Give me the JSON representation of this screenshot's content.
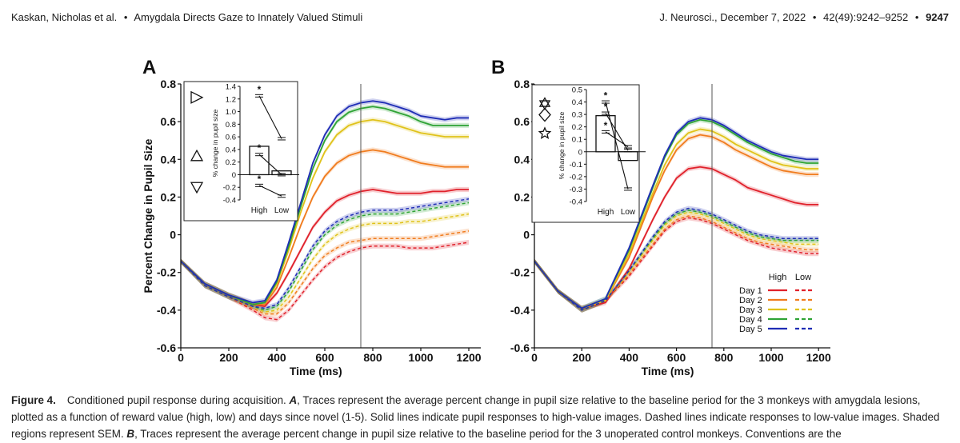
{
  "header": {
    "authors": "Kaskan, Nicholas et al.",
    "bullet": "•",
    "short_title": "Amygdala Directs Gaze to Innately Valued Stimuli",
    "journal": "J. Neurosci., December 7, 2022",
    "sep": "•",
    "volume": "42(49):9242–9252",
    "page": "9247"
  },
  "colors": {
    "day1": "#e0212b",
    "day2": "#f07c1e",
    "day3": "#e0c21a",
    "day4": "#2fa336",
    "day5": "#1f2db5"
  },
  "chart_data": [
    {
      "panel": "A",
      "type": "line",
      "ylabel": "Percent Change in Pupil Size",
      "xlabel": "Time (ms)",
      "xlim": [
        0,
        1250
      ],
      "ylim": [
        -0.6,
        0.8
      ],
      "xticks": [
        "0",
        "200",
        "400",
        "600",
        "800",
        "1000",
        "1200"
      ],
      "yticks": [
        "-0.6",
        "-0.4",
        "-0.2",
        "0",
        "0.2",
        "0.4",
        "0.6",
        "0.8"
      ],
      "vline_x": 750,
      "x": [
        0,
        100,
        200,
        300,
        350,
        400,
        450,
        500,
        550,
        600,
        650,
        700,
        750,
        800,
        850,
        900,
        950,
        1000,
        1050,
        1100,
        1150,
        1200
      ],
      "series": [
        {
          "name": "Day 1 High",
          "color_key": "day1",
          "dash": false,
          "values": [
            -0.14,
            -0.26,
            -0.32,
            -0.37,
            -0.38,
            -0.31,
            -0.2,
            -0.08,
            0.04,
            0.12,
            0.18,
            0.21,
            0.23,
            0.24,
            0.23,
            0.22,
            0.22,
            0.22,
            0.23,
            0.23,
            0.24,
            0.24
          ]
        },
        {
          "name": "Day 2 High",
          "color_key": "day2",
          "dash": false,
          "values": [
            -0.14,
            -0.26,
            -0.32,
            -0.37,
            -0.37,
            -0.28,
            -0.12,
            0.05,
            0.2,
            0.31,
            0.38,
            0.42,
            0.44,
            0.45,
            0.44,
            0.42,
            0.4,
            0.38,
            0.37,
            0.36,
            0.36,
            0.36
          ]
        },
        {
          "name": "Day 3 High",
          "color_key": "day3",
          "dash": false,
          "values": [
            -0.14,
            -0.26,
            -0.32,
            -0.37,
            -0.36,
            -0.26,
            -0.08,
            0.12,
            0.3,
            0.44,
            0.53,
            0.58,
            0.6,
            0.61,
            0.6,
            0.58,
            0.56,
            0.54,
            0.53,
            0.52,
            0.52,
            0.52
          ]
        },
        {
          "name": "Day 4 High",
          "color_key": "day4",
          "dash": false,
          "values": [
            -0.14,
            -0.26,
            -0.32,
            -0.37,
            -0.36,
            -0.25,
            -0.06,
            0.15,
            0.35,
            0.5,
            0.6,
            0.65,
            0.67,
            0.68,
            0.67,
            0.65,
            0.63,
            0.6,
            0.58,
            0.58,
            0.58,
            0.58
          ]
        },
        {
          "name": "Day 5 High",
          "color_key": "day5",
          "dash": false,
          "values": [
            -0.14,
            -0.26,
            -0.32,
            -0.36,
            -0.35,
            -0.24,
            -0.04,
            0.17,
            0.38,
            0.53,
            0.63,
            0.68,
            0.7,
            0.71,
            0.7,
            0.68,
            0.66,
            0.63,
            0.62,
            0.61,
            0.62,
            0.62
          ]
        },
        {
          "name": "Day 1 Low",
          "color_key": "day1",
          "dash": true,
          "values": [
            -0.14,
            -0.27,
            -0.33,
            -0.4,
            -0.44,
            -0.45,
            -0.4,
            -0.32,
            -0.24,
            -0.17,
            -0.12,
            -0.09,
            -0.07,
            -0.06,
            -0.06,
            -0.06,
            -0.07,
            -0.07,
            -0.07,
            -0.06,
            -0.05,
            -0.04
          ]
        },
        {
          "name": "Day 2 Low",
          "color_key": "day2",
          "dash": true,
          "values": [
            -0.14,
            -0.27,
            -0.33,
            -0.39,
            -0.42,
            -0.42,
            -0.36,
            -0.27,
            -0.18,
            -0.11,
            -0.07,
            -0.04,
            -0.03,
            -0.02,
            -0.02,
            -0.02,
            -0.02,
            -0.02,
            -0.01,
            0.0,
            0.01,
            0.02
          ]
        },
        {
          "name": "Day 3 Low",
          "color_key": "day3",
          "dash": true,
          "values": [
            -0.14,
            -0.27,
            -0.33,
            -0.38,
            -0.41,
            -0.4,
            -0.33,
            -0.23,
            -0.13,
            -0.05,
            0.0,
            0.03,
            0.05,
            0.06,
            0.06,
            0.06,
            0.07,
            0.07,
            0.08,
            0.09,
            0.1,
            0.11
          ]
        },
        {
          "name": "Day 4 Low",
          "color_key": "day4",
          "dash": true,
          "values": [
            -0.14,
            -0.27,
            -0.33,
            -0.38,
            -0.4,
            -0.38,
            -0.3,
            -0.19,
            -0.08,
            0.0,
            0.05,
            0.08,
            0.1,
            0.11,
            0.11,
            0.11,
            0.12,
            0.13,
            0.14,
            0.15,
            0.16,
            0.17
          ]
        },
        {
          "name": "Day 5 Low",
          "color_key": "day5",
          "dash": true,
          "values": [
            -0.14,
            -0.27,
            -0.33,
            -0.38,
            -0.39,
            -0.37,
            -0.28,
            -0.17,
            -0.06,
            0.02,
            0.07,
            0.1,
            0.12,
            0.13,
            0.13,
            0.13,
            0.14,
            0.15,
            0.16,
            0.17,
            0.18,
            0.19
          ]
        }
      ],
      "inset": {
        "type": "bar",
        "ylabel": "% change in pupil size",
        "categories": [
          "High",
          "Low"
        ],
        "ylim": [
          -0.4,
          1.4
        ],
        "yticks": [
          "-0.4",
          "-0.2",
          "0",
          "0.2",
          "0.4",
          "0.6",
          "0.8",
          "1.0",
          "1.2",
          "1.4"
        ],
        "values": [
          0.45,
          0.06
        ],
        "shapes": [
          {
            "name": "triangle-right",
            "high": 1.25,
            "low": 0.57
          },
          {
            "name": "triangle-up",
            "high": 0.32,
            "low": 0.0
          },
          {
            "name": "triangle-down",
            "high": -0.17,
            "low": -0.34
          }
        ],
        "sig_marker": "*"
      }
    },
    {
      "panel": "B",
      "type": "line",
      "ylabel": "",
      "xlabel": "Time (ms)",
      "xlim": [
        0,
        1250
      ],
      "ylim": [
        -0.6,
        0.8
      ],
      "xticks": [
        "0",
        "200",
        "400",
        "600",
        "800",
        "1000",
        "1200"
      ],
      "yticks": [
        "-0.6",
        "-0.4",
        "-0.2",
        "0",
        "0.2",
        "0.4",
        "0.6",
        "0.8"
      ],
      "vline_x": 750,
      "x": [
        0,
        100,
        200,
        300,
        400,
        500,
        550,
        600,
        650,
        700,
        750,
        800,
        850,
        900,
        950,
        1000,
        1050,
        1100,
        1150,
        1200
      ],
      "series": [
        {
          "name": "Day 1 High",
          "color_key": "day1",
          "dash": false,
          "values": [
            -0.14,
            -0.3,
            -0.39,
            -0.36,
            -0.18,
            0.08,
            0.2,
            0.3,
            0.35,
            0.36,
            0.35,
            0.32,
            0.29,
            0.25,
            0.23,
            0.21,
            0.19,
            0.17,
            0.16,
            0.16
          ]
        },
        {
          "name": "Day 2 High",
          "color_key": "day2",
          "dash": false,
          "values": [
            -0.14,
            -0.3,
            -0.39,
            -0.35,
            -0.12,
            0.2,
            0.34,
            0.45,
            0.51,
            0.53,
            0.52,
            0.49,
            0.45,
            0.42,
            0.39,
            0.36,
            0.34,
            0.33,
            0.32,
            0.32
          ]
        },
        {
          "name": "Day 3 High",
          "color_key": "day3",
          "dash": false,
          "values": [
            -0.14,
            -0.3,
            -0.39,
            -0.35,
            -0.1,
            0.22,
            0.37,
            0.48,
            0.54,
            0.56,
            0.55,
            0.52,
            0.48,
            0.45,
            0.42,
            0.39,
            0.37,
            0.36,
            0.35,
            0.35
          ]
        },
        {
          "name": "Day 4 High",
          "color_key": "day4",
          "dash": false,
          "values": [
            -0.14,
            -0.3,
            -0.39,
            -0.34,
            -0.08,
            0.25,
            0.41,
            0.53,
            0.59,
            0.61,
            0.6,
            0.57,
            0.53,
            0.49,
            0.46,
            0.43,
            0.41,
            0.39,
            0.38,
            0.38
          ]
        },
        {
          "name": "Day 5 High",
          "color_key": "day5",
          "dash": false,
          "values": [
            -0.14,
            -0.3,
            -0.39,
            -0.34,
            -0.07,
            0.26,
            0.42,
            0.54,
            0.6,
            0.62,
            0.61,
            0.58,
            0.54,
            0.5,
            0.47,
            0.44,
            0.42,
            0.41,
            0.4,
            0.4
          ]
        },
        {
          "name": "Day 1 Low",
          "color_key": "day1",
          "dash": true,
          "values": [
            -0.14,
            -0.3,
            -0.4,
            -0.35,
            -0.22,
            -0.06,
            0.02,
            0.07,
            0.09,
            0.08,
            0.06,
            0.03,
            0.0,
            -0.03,
            -0.05,
            -0.07,
            -0.08,
            -0.09,
            -0.1,
            -0.1
          ]
        },
        {
          "name": "Day 2 Low",
          "color_key": "day2",
          "dash": true,
          "values": [
            -0.14,
            -0.3,
            -0.4,
            -0.35,
            -0.21,
            -0.05,
            0.03,
            0.08,
            0.1,
            0.09,
            0.07,
            0.04,
            0.01,
            -0.02,
            -0.04,
            -0.05,
            -0.06,
            -0.07,
            -0.08,
            -0.08
          ]
        },
        {
          "name": "Day 3 Low",
          "color_key": "day3",
          "dash": true,
          "values": [
            -0.14,
            -0.3,
            -0.4,
            -0.35,
            -0.2,
            -0.03,
            0.05,
            0.1,
            0.12,
            0.11,
            0.09,
            0.06,
            0.03,
            0.0,
            -0.02,
            -0.03,
            -0.04,
            -0.05,
            -0.05,
            -0.05
          ]
        },
        {
          "name": "Day 4 Low",
          "color_key": "day4",
          "dash": true,
          "values": [
            -0.14,
            -0.3,
            -0.4,
            -0.35,
            -0.19,
            -0.02,
            0.06,
            0.11,
            0.13,
            0.12,
            0.1,
            0.07,
            0.04,
            0.01,
            -0.01,
            -0.02,
            -0.03,
            -0.03,
            -0.03,
            -0.03
          ]
        },
        {
          "name": "Day 5 Low",
          "color_key": "day5",
          "dash": true,
          "values": [
            -0.14,
            -0.3,
            -0.4,
            -0.35,
            -0.19,
            -0.01,
            0.07,
            0.12,
            0.14,
            0.13,
            0.11,
            0.08,
            0.05,
            0.02,
            0.0,
            -0.01,
            -0.02,
            -0.02,
            -0.02,
            -0.02
          ]
        }
      ],
      "inset": {
        "type": "bar",
        "ylabel": "% change in pupil size",
        "categories": [
          "High",
          "Low"
        ],
        "ylim": [
          -0.4,
          0.5
        ],
        "yticks": [
          "-0.4",
          "-0.3",
          "-0.2",
          "-0.1",
          "0",
          "0.1",
          "0.2",
          "0.3",
          "0.4",
          "0.5"
        ],
        "values": [
          0.29,
          -0.07
        ],
        "shapes": [
          {
            "name": "star-of-david",
            "high": 0.4,
            "low": -0.3
          },
          {
            "name": "diamond",
            "high": 0.31,
            "low": 0.01
          },
          {
            "name": "star",
            "high": 0.16,
            "low": 0.04
          }
        ],
        "sig_marker": "*"
      },
      "legend": {
        "position": "bottom-right",
        "headers": [
          "High",
          "Low"
        ],
        "entries": [
          "Day 1",
          "Day 2",
          "Day 3",
          "Day 4",
          "Day 5"
        ]
      }
    }
  ],
  "caption": {
    "label": "Figure 4.",
    "p1": "Conditioned pupil response during acquisition. ",
    "a": "A",
    "p2": ", Traces represent the average percent change in pupil size relative to the baseline period for the 3 monkeys with amygdala lesions, plotted as a function of reward value (high, low) and days since novel (1-5). Solid lines indicate pupil responses to high-value images. Dashed lines indicate responses to low-value images. Shaded regions represent SEM. ",
    "b": "B",
    "p3": ", Traces represent the average percent change in pupil size relative to the baseline period for the 3 unoperated control monkeys. Conventions are the"
  }
}
